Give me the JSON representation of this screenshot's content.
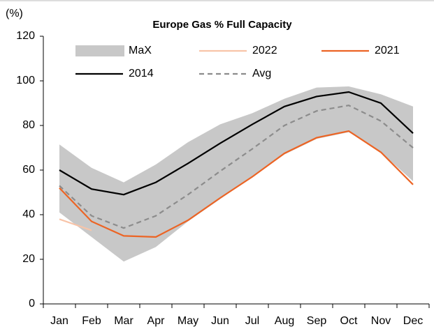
{
  "chart_data": {
    "type": "line",
    "title": "Europe Gas % Full Capacity",
    "y_label": "(%)",
    "categories": [
      "Jan",
      "Feb",
      "Mar",
      "Apr",
      "May",
      "Jun",
      "Jul",
      "Aug",
      "Sep",
      "Oct",
      "Nov",
      "Dec"
    ],
    "ylim": [
      0,
      120
    ],
    "yticks": [
      0,
      20,
      40,
      60,
      80,
      100,
      120
    ],
    "series": [
      {
        "name": "MaX",
        "color": "#c8c8c8",
        "values": [
          71.5,
          61,
          54.5,
          62.5,
          72.5,
          80.5,
          85.5,
          92,
          97,
          97.5,
          94,
          88.5
        ],
        "min": [
          41,
          30,
          19,
          25.5,
          37,
          47,
          57,
          67,
          74,
          77,
          68,
          55
        ]
      },
      {
        "name": "2022",
        "color": "#f8c4a8",
        "values": [
          38,
          33,
          null,
          null,
          null,
          null,
          null,
          null,
          null,
          null,
          null,
          null
        ]
      },
      {
        "name": "2021",
        "color": "#ec6424",
        "values": [
          52,
          37,
          30.5,
          30,
          37.5,
          47.5,
          57,
          67.5,
          74.5,
          77.5,
          68,
          53.5
        ]
      },
      {
        "name": "2014",
        "color": "#000000",
        "values": [
          60,
          51.5,
          49,
          54.5,
          63,
          72,
          80.5,
          88.5,
          93,
          95,
          90,
          76.5
        ]
      },
      {
        "name": "Avg",
        "color": "#8c8c8c",
        "dashed": true,
        "values": [
          53,
          39.5,
          34,
          39.5,
          49,
          59.5,
          69.5,
          80,
          86.5,
          89,
          82,
          70
        ]
      }
    ]
  }
}
